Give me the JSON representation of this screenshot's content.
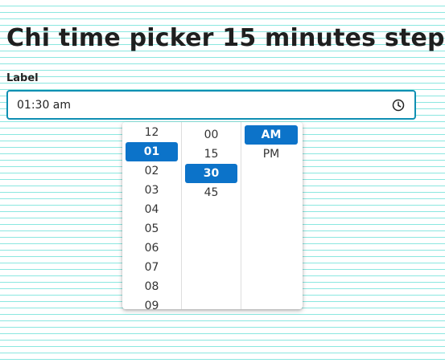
{
  "page": {
    "title": "Chi time picker 15 minutes step"
  },
  "field": {
    "label": "Label",
    "value": "01:30 am",
    "icon": "clock-icon"
  },
  "picker": {
    "hours": [
      "12",
      "01",
      "02",
      "03",
      "04",
      "05",
      "06",
      "07",
      "08",
      "09"
    ],
    "selected_hour": "01",
    "minutes": [
      "00",
      "15",
      "30",
      "45"
    ],
    "selected_minute": "30",
    "periods": [
      "AM",
      "PM"
    ],
    "selected_period": "AM"
  },
  "colors": {
    "accent": "#0c73c9",
    "input_border": "#0f8fb3",
    "background_lines": "#8be7e0"
  }
}
